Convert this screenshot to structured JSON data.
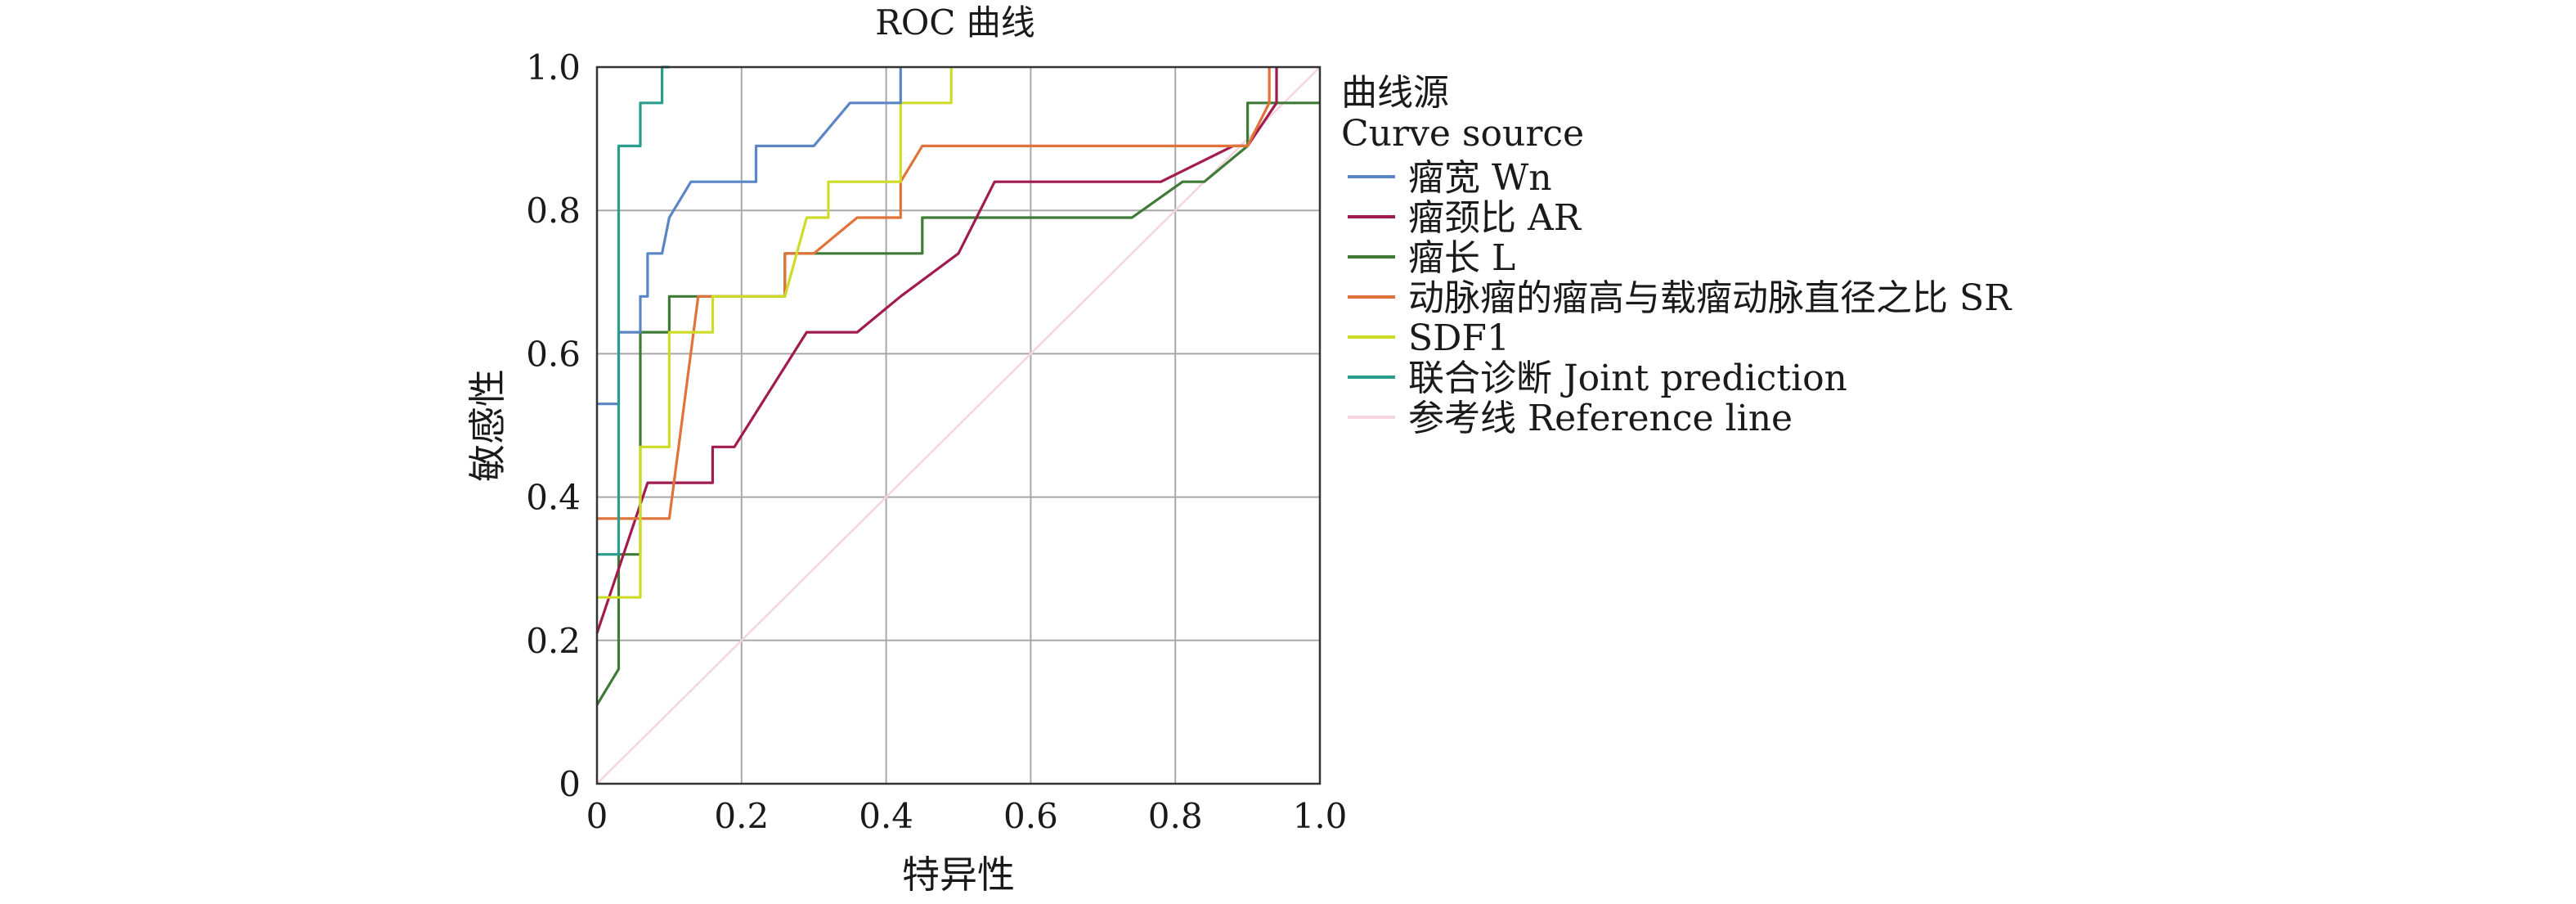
{
  "chart_data": {
    "type": "line",
    "title": "ROC 曲线",
    "xlabel": "特异性",
    "ylabel": "敏感性",
    "xlim": [
      0,
      1
    ],
    "ylim": [
      0,
      1
    ],
    "grid": true,
    "x_ticks": [
      "0",
      "0.2",
      "0.4",
      "0.6",
      "0.8",
      "1.0"
    ],
    "y_ticks": [
      "0",
      "0.2",
      "0.4",
      "0.6",
      "0.8",
      "1.0"
    ],
    "legend": {
      "placement": "right",
      "title_line1": "曲线源",
      "title_line2": "Curve source"
    },
    "series": [
      {
        "name": "瘤宽 Wn",
        "color": "#5b86c5",
        "points": [
          [
            0,
            0.53
          ],
          [
            0.03,
            0.53
          ],
          [
            0.03,
            0.63
          ],
          [
            0.06,
            0.63
          ],
          [
            0.06,
            0.68
          ],
          [
            0.07,
            0.68
          ],
          [
            0.07,
            0.74
          ],
          [
            0.09,
            0.74
          ],
          [
            0.1,
            0.79
          ],
          [
            0.13,
            0.84
          ],
          [
            0.22,
            0.84
          ],
          [
            0.22,
            0.89
          ],
          [
            0.3,
            0.89
          ],
          [
            0.35,
            0.95
          ],
          [
            0.41,
            0.95
          ],
          [
            0.42,
            0.95
          ],
          [
            0.42,
            1.0
          ]
        ]
      },
      {
        "name": "瘤颈比 AR",
        "color": "#a01c4e",
        "points": [
          [
            0,
            0.21
          ],
          [
            0.07,
            0.42
          ],
          [
            0.16,
            0.42
          ],
          [
            0.16,
            0.47
          ],
          [
            0.19,
            0.47
          ],
          [
            0.29,
            0.63
          ],
          [
            0.36,
            0.63
          ],
          [
            0.42,
            0.68
          ],
          [
            0.5,
            0.74
          ],
          [
            0.55,
            0.84
          ],
          [
            0.78,
            0.84
          ],
          [
            0.84,
            0.87
          ],
          [
            0.88,
            0.89
          ],
          [
            0.9,
            0.89
          ],
          [
            0.94,
            0.95
          ],
          [
            0.94,
            1.0
          ]
        ]
      },
      {
        "name": "瘤长 L",
        "color": "#3f7a36",
        "points": [
          [
            0,
            0.11
          ],
          [
            0.03,
            0.16
          ],
          [
            0.03,
            0.32
          ],
          [
            0.06,
            0.32
          ],
          [
            0.06,
            0.63
          ],
          [
            0.1,
            0.63
          ],
          [
            0.1,
            0.68
          ],
          [
            0.26,
            0.68
          ],
          [
            0.26,
            0.74
          ],
          [
            0.45,
            0.74
          ],
          [
            0.45,
            0.79
          ],
          [
            0.74,
            0.79
          ],
          [
            0.81,
            0.84
          ],
          [
            0.84,
            0.84
          ],
          [
            0.9,
            0.89
          ],
          [
            0.9,
            0.95
          ],
          [
            1.0,
            0.95
          ]
        ]
      },
      {
        "name": "动脉瘤的瘤高与载瘤动脉直径之比 SR",
        "color": "#e0733a",
        "points": [
          [
            0,
            0.37
          ],
          [
            0.1,
            0.37
          ],
          [
            0.14,
            0.68
          ],
          [
            0.16,
            0.68
          ],
          [
            0.16,
            0.68
          ],
          [
            0.26,
            0.68
          ],
          [
            0.26,
            0.74
          ],
          [
            0.3,
            0.74
          ],
          [
            0.36,
            0.79
          ],
          [
            0.42,
            0.79
          ],
          [
            0.42,
            0.84
          ],
          [
            0.45,
            0.89
          ],
          [
            0.9,
            0.89
          ],
          [
            0.93,
            0.95
          ],
          [
            0.93,
            1.0
          ]
        ]
      },
      {
        "name": "SDF1",
        "color": "#cddc28",
        "points": [
          [
            0,
            0.26
          ],
          [
            0.06,
            0.26
          ],
          [
            0.06,
            0.47
          ],
          [
            0.1,
            0.47
          ],
          [
            0.1,
            0.63
          ],
          [
            0.16,
            0.63
          ],
          [
            0.16,
            0.68
          ],
          [
            0.26,
            0.68
          ],
          [
            0.29,
            0.79
          ],
          [
            0.32,
            0.79
          ],
          [
            0.32,
            0.84
          ],
          [
            0.42,
            0.84
          ],
          [
            0.42,
            0.95
          ],
          [
            0.49,
            0.95
          ],
          [
            0.49,
            1.0
          ]
        ]
      },
      {
        "name": "联合诊断 Joint prediction",
        "color": "#2a9d8f",
        "points": [
          [
            0,
            0.32
          ],
          [
            0.03,
            0.32
          ],
          [
            0.03,
            0.89
          ],
          [
            0.06,
            0.89
          ],
          [
            0.06,
            0.95
          ],
          [
            0.09,
            0.95
          ],
          [
            0.09,
            1.0
          ],
          [
            0.1,
            1.0
          ]
        ]
      },
      {
        "name": "参考线 Reference line",
        "color": "#f4d6dc",
        "points": [
          [
            0,
            0
          ],
          [
            1,
            1
          ]
        ]
      }
    ]
  }
}
